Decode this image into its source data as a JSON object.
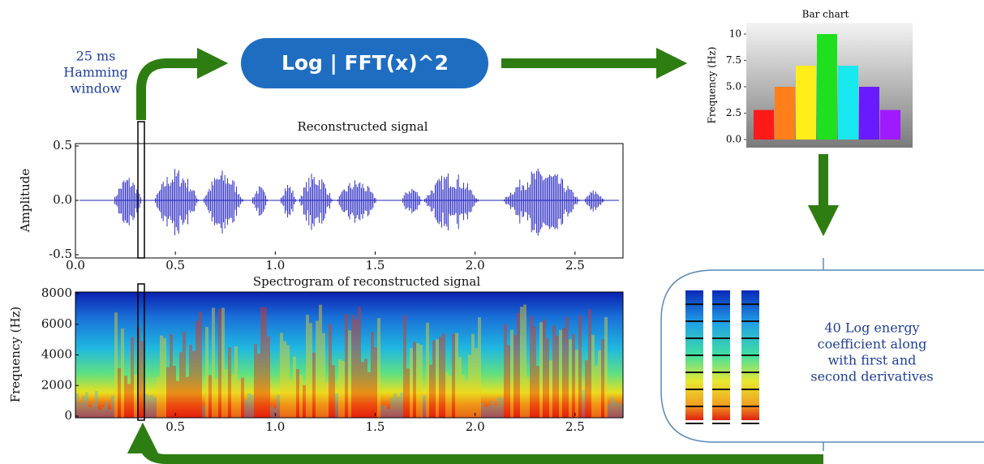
{
  "hamming_label": [
    "25 ms",
    "Hamming",
    "window"
  ],
  "fft_box": "Log | FFT(x)^2",
  "bar_chart": {
    "type": "bar",
    "title": "Bar chart",
    "y_label": "Frequency (Hz)",
    "values": [
      2.8,
      5,
      7,
      10,
      7,
      5,
      2.8
    ],
    "colors": [
      "#ff1a1a",
      "#ff7f1a",
      "#ffee1a",
      "#1ee01e",
      "#1ae8f0",
      "#6a1aff",
      "#a01aff"
    ],
    "ylim": [
      0,
      11
    ],
    "yticks": [
      {
        "value": 0,
        "label": "0.0"
      },
      {
        "value": 2.5,
        "label": "2.5"
      },
      {
        "value": 5,
        "label": "5.0"
      },
      {
        "value": 7.5,
        "label": "7.5"
      },
      10
    ]
  },
  "waveform": {
    "title": "Reconstructed signal",
    "y_label": "Amplitude",
    "xlim": [
      0,
      2.74
    ],
    "ylim": [
      -0.5,
      0.5
    ],
    "xticks": [
      {
        "value": 0,
        "label": "0.0"
      },
      0.5,
      {
        "value": 1,
        "label": "1.0"
      },
      1.5,
      {
        "value": 2,
        "label": "2.0"
      },
      2.5
    ],
    "yticks": [
      {
        "value": -0.5,
        "label": "-0.5"
      },
      {
        "value": 0,
        "label": "0.0"
      },
      0.5
    ]
  },
  "spectrogram": {
    "title": "Spectrogram of reconstructed signal",
    "y_label": "Frequency (Hz)",
    "xlim": [
      0,
      2.74
    ],
    "ylim": [
      0,
      8000
    ],
    "xticks": [
      0.5,
      {
        "value": 1,
        "label": "1.0"
      },
      1.5,
      {
        "value": 2,
        "label": "2.0"
      },
      2.5
    ],
    "yticks": [
      0,
      2000,
      4000,
      6000,
      8000
    ]
  },
  "coefficient_text": [
    "40 Log energy",
    "coefficient along",
    "with first and",
    "second derivatives"
  ]
}
